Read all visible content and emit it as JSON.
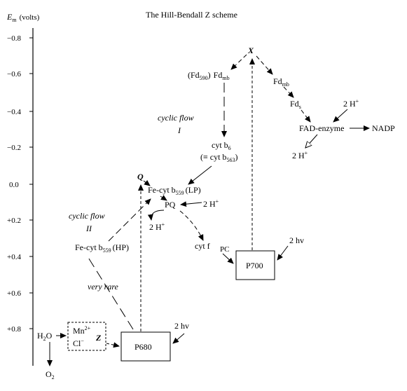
{
  "title": "The Hill-Bendall Z scheme",
  "axis": {
    "label_main": "E",
    "label_sub": "m",
    "label_unit": "(volts)",
    "ticks": [
      "−0.8",
      "−0.6",
      "−0.4",
      "−0.2",
      "0.0",
      "+0.2",
      "+0.4",
      "+0.6",
      "+0.8"
    ]
  },
  "nodes": {
    "x": "X",
    "q": "Q",
    "fd590_open": "(Fd",
    "fd590_sub": "590",
    "fd590_close": ")",
    "fdmb_left": "Fd",
    "fdmb_left_sub": "mb",
    "fdmb_right": "Fd",
    "fdmb_right_sub": "mb",
    "fds": "Fd",
    "fds_sub": "s",
    "h2plus_top": "2 H",
    "h2plus_top_sup": "+",
    "fad_enzyme": "FAD-enzyme",
    "nadp": "NADP",
    "h2plus_fad": "2 H",
    "h2plus_fad_sup": "+",
    "cytb6": "cyt b",
    "cytb6_sub": "6",
    "cytb563_pre": "(≡ cyt b",
    "cytb563_sub": "563",
    "cytb563_post": ")",
    "cyclic1_line1": "cyclic flow",
    "cyclic1_line2": "I",
    "cyclic2_line1": "cyclic flow",
    "cyclic2_line2": "II",
    "fecyt_lp_pre": "Fe-cyt b",
    "fecyt_lp_sub": "559",
    "fecyt_lp_post": "(LP)",
    "pq": "PQ",
    "h2plus_pq": "2 H",
    "h2plus_pq_sup": "+",
    "h2plus_pq_down": "2 H",
    "h2plus_pq_down_sup": "+",
    "fecyt_hp_pre": "Fe-cyt b",
    "fecyt_hp_sub": "559",
    "fecyt_hp_post": "(HP)",
    "cytf": "cyt f",
    "pc": "PC",
    "p700": "P700",
    "hv_p700": "2 hv",
    "very_rare": "very rare",
    "p680": "P680",
    "hv_p680": "2 hv",
    "h2o_pre": "H",
    "h2o_sub": "2",
    "h2o_post": "O",
    "mn": "Mn",
    "mn_sup": "2+",
    "cl": "Cl",
    "cl_sup": "−",
    "z": "Z",
    "o2_pre": "O",
    "o2_sub": "2"
  }
}
